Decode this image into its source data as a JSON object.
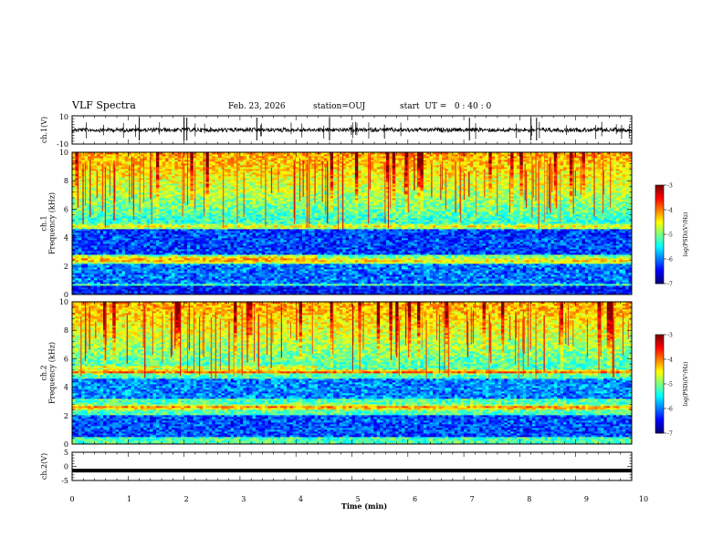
{
  "header": {
    "title": "VLF Spectra",
    "date": "Feb. 23, 2026",
    "station": "station=OUJ",
    "start_ut": "start  UT =   0 : 40 : 0"
  },
  "chart_data": [
    {
      "type": "line",
      "panel": "ch1-waveform",
      "ylabel": "ch.1(V)",
      "ylim": [
        -10,
        10
      ],
      "yticks": [
        "10",
        "-10"
      ],
      "xlim": [
        0,
        10
      ],
      "baseline": 0,
      "spikes": [
        1.2,
        2.0,
        2.05,
        3.3,
        4.6,
        7.1,
        8.2,
        8.3
      ]
    },
    {
      "type": "heatmap",
      "panel": "ch1-spectrogram",
      "ylabel": "ch.1\nFrequency  (kHz)",
      "ylabel_lines": [
        "ch.1",
        "Frequency  (kHz)"
      ],
      "ylim": [
        0,
        10
      ],
      "yticks": [
        "0",
        "2",
        "4",
        "6",
        "8",
        "10"
      ],
      "xlim": [
        0,
        10
      ],
      "colorbar": {
        "label": "log(PSD)(V²/Hz)",
        "range": [
          -7,
          -3
        ],
        "ticks": [
          "-3",
          "-4",
          "-5",
          "-6",
          "-7"
        ]
      }
    },
    {
      "type": "heatmap",
      "panel": "ch2-spectrogram",
      "ylabel": "ch.2\nFrequency  (kHz)",
      "ylabel_lines": [
        "ch.2",
        "Frequency  (kHz)"
      ],
      "ylim": [
        0,
        10
      ],
      "yticks": [
        "0",
        "2",
        "4",
        "6",
        "8",
        "10"
      ],
      "xlim": [
        0,
        10
      ],
      "colorbar": {
        "label": "log(PSD)(V²/Hz)",
        "range": [
          -7,
          -3
        ],
        "ticks": [
          "-3",
          "-4",
          "-5",
          "-6",
          "-7"
        ]
      }
    },
    {
      "type": "line",
      "panel": "ch2-waveform",
      "ylabel": "ch.2(V)",
      "ylim": [
        -5,
        5
      ],
      "yticks": [
        "5",
        "0",
        "-5"
      ],
      "xlim": [
        0,
        10
      ],
      "xlabel": "Time  (min)",
      "xticks": [
        "0",
        "1",
        "2",
        "3",
        "4",
        "5",
        "6",
        "7",
        "8",
        "9",
        "10"
      ],
      "baseline": -1.5
    }
  ]
}
